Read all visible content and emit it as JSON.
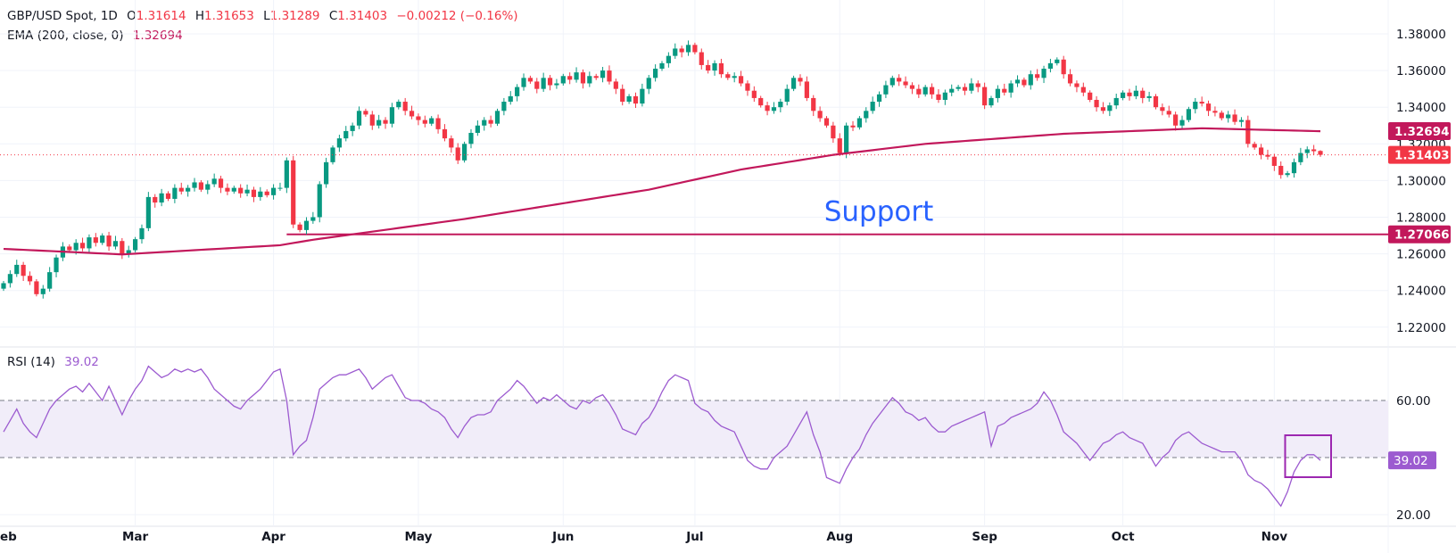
{
  "header": {
    "symbol": "GBP/USD Spot, 1D",
    "open_label": "O",
    "open": "1.31614",
    "high_label": "H",
    "high": "1.31653",
    "low_label": "L",
    "low": "1.31289",
    "close_label": "C",
    "close": "1.31403",
    "change": "−0.00212 (−0.16%)",
    "ema_label": "EMA (200, close, 0)",
    "ema_value": "1.32694",
    "rsi_label": "RSI (14)",
    "rsi_value": "39.02"
  },
  "colors": {
    "up": "#089981",
    "down": "#f23645",
    "ema": "#c2185b",
    "support": "#c2185b",
    "rsi": "#9c5bd0",
    "rsi_band": "#f1edf9",
    "highlight_box": "#9c27b0",
    "support_text": "#2962ff",
    "grid": "#f0f3fa"
  },
  "chart_data": [
    {
      "type": "candlestick",
      "title": "GBP/USD Spot, 1D",
      "x_ticks": [
        "eb",
        "Mar",
        "Apr",
        "May",
        "Jun",
        "Jul",
        "Aug",
        "Sep",
        "Oct",
        "Nov"
      ],
      "y_ticks": [
        "1.38000",
        "1.36000",
        "1.34000",
        "1.32000",
        "1.30000",
        "1.28000",
        "1.26000",
        "1.24000",
        "1.22000"
      ],
      "ylim": [
        1.2125,
        1.3835
      ],
      "grid": true,
      "close": [
        1.244,
        1.249,
        1.254,
        1.248,
        1.245,
        1.238,
        1.241,
        1.25,
        1.258,
        1.264,
        1.262,
        1.266,
        1.263,
        1.269,
        1.266,
        1.27,
        1.264,
        1.267,
        1.26,
        1.262,
        1.268,
        1.274,
        1.291,
        1.288,
        1.293,
        1.29,
        1.296,
        1.294,
        1.296,
        1.299,
        1.295,
        1.298,
        1.301,
        1.296,
        1.294,
        1.296,
        1.293,
        1.295,
        1.291,
        1.294,
        1.292,
        1.296,
        1.296,
        1.311,
        1.276,
        1.273,
        1.278,
        1.28,
        1.298,
        1.31,
        1.318,
        1.323,
        1.327,
        1.33,
        1.338,
        1.336,
        1.33,
        1.333,
        1.331,
        1.34,
        1.343,
        1.338,
        1.335,
        1.333,
        1.331,
        1.334,
        1.328,
        1.323,
        1.318,
        1.311,
        1.32,
        1.326,
        1.33,
        1.333,
        1.331,
        1.338,
        1.343,
        1.346,
        1.351,
        1.356,
        1.354,
        1.35,
        1.356,
        1.352,
        1.353,
        1.357,
        1.355,
        1.359,
        1.353,
        1.357,
        1.356,
        1.36,
        1.354,
        1.35,
        1.343,
        1.346,
        1.342,
        1.35,
        1.356,
        1.361,
        1.364,
        1.368,
        1.372,
        1.37,
        1.374,
        1.37,
        1.363,
        1.36,
        1.364,
        1.358,
        1.356,
        1.357,
        1.353,
        1.349,
        1.345,
        1.341,
        1.338,
        1.34,
        1.343,
        1.35,
        1.356,
        1.354,
        1.345,
        1.338,
        1.334,
        1.33,
        1.323,
        1.315,
        1.33,
        1.329,
        1.334,
        1.338,
        1.343,
        1.347,
        1.352,
        1.356,
        1.354,
        1.352,
        1.35,
        1.347,
        1.351,
        1.347,
        1.344,
        1.348,
        1.35,
        1.351,
        1.349,
        1.353,
        1.351,
        1.341,
        1.345,
        1.35,
        1.348,
        1.353,
        1.355,
        1.352,
        1.358,
        1.356,
        1.361,
        1.364,
        1.366,
        1.358,
        1.353,
        1.351,
        1.348,
        1.344,
        1.34,
        1.338,
        1.341,
        1.345,
        1.348,
        1.346,
        1.349,
        1.345,
        1.346,
        1.34,
        1.338,
        1.336,
        1.33,
        1.333,
        1.339,
        1.343,
        1.342,
        1.338,
        1.337,
        1.334,
        1.336,
        1.332,
        1.333,
        1.32,
        1.318,
        1.314,
        1.313,
        1.308,
        1.303,
        1.304,
        1.31,
        1.315,
        1.317,
        1.316,
        1.314
      ],
      "last_candle": {
        "open": 1.31614,
        "high": 1.31653,
        "low": 1.31289,
        "close": 1.31403
      },
      "ema200": [
        [
          0,
          1.2627
        ],
        [
          18,
          1.2597
        ],
        [
          42,
          1.2647
        ],
        [
          47,
          1.2677
        ],
        [
          70,
          1.279
        ],
        [
          98,
          1.295
        ],
        [
          112,
          1.306
        ],
        [
          126,
          1.314
        ],
        [
          140,
          1.32
        ],
        [
          161,
          1.3255
        ],
        [
          182,
          1.3285
        ],
        [
          200,
          1.3269
        ]
      ],
      "price_labels": {
        "ema": "1.32694",
        "last": "1.31403",
        "support": "1.27066"
      },
      "support_level": 1.27066,
      "support_start_index": 43,
      "annotation": "Support"
    },
    {
      "type": "line",
      "title": "RSI (14)",
      "y_ticks": [
        "60.00",
        "20.00"
      ],
      "ylim": [
        16,
        84
      ],
      "band": [
        40,
        60
      ],
      "last_label": "39.02",
      "values": [
        49,
        53,
        57,
        52,
        49,
        47,
        52,
        57,
        60,
        62,
        64,
        65,
        63,
        66,
        63,
        60,
        65,
        60,
        55,
        60,
        64,
        67,
        72,
        70,
        68,
        69,
        71,
        70,
        71,
        70,
        71,
        68,
        64,
        62,
        60,
        58,
        57,
        60,
        62,
        64,
        67,
        70,
        71,
        60,
        41,
        44,
        46,
        54,
        64,
        66,
        68,
        69,
        69,
        70,
        71,
        68,
        64,
        66,
        68,
        69,
        65,
        61,
        60,
        60,
        59,
        57,
        56,
        54,
        50,
        47,
        51,
        54,
        55,
        55,
        56,
        60,
        62,
        64,
        67,
        65,
        62,
        59,
        61,
        60,
        62,
        60,
        58,
        57,
        60,
        59,
        61,
        62,
        59,
        55,
        50,
        49,
        48,
        52,
        54,
        58,
        63,
        67,
        69,
        68,
        67,
        59,
        57,
        56,
        53,
        51,
        50,
        49,
        44,
        39,
        37,
        36,
        36,
        40,
        42,
        44,
        48,
        52,
        56,
        48,
        42,
        33,
        32,
        31,
        36,
        40,
        43,
        48,
        52,
        55,
        58,
        61,
        59,
        56,
        55,
        53,
        54,
        51,
        49,
        49,
        51,
        52,
        53,
        54,
        55,
        56,
        44,
        51,
        52,
        54,
        55,
        56,
        57,
        59,
        63,
        60,
        55,
        49,
        47,
        45,
        42,
        39,
        42,
        45,
        46,
        48,
        49,
        47,
        46,
        45,
        41,
        37,
        40,
        42,
        46,
        48,
        49,
        47,
        45,
        44,
        43,
        42,
        42,
        42,
        39,
        34,
        32,
        31,
        29,
        26,
        23,
        28,
        35,
        39,
        41,
        41,
        39.02
      ],
      "highlight_range": [
        196,
        200
      ]
    }
  ]
}
